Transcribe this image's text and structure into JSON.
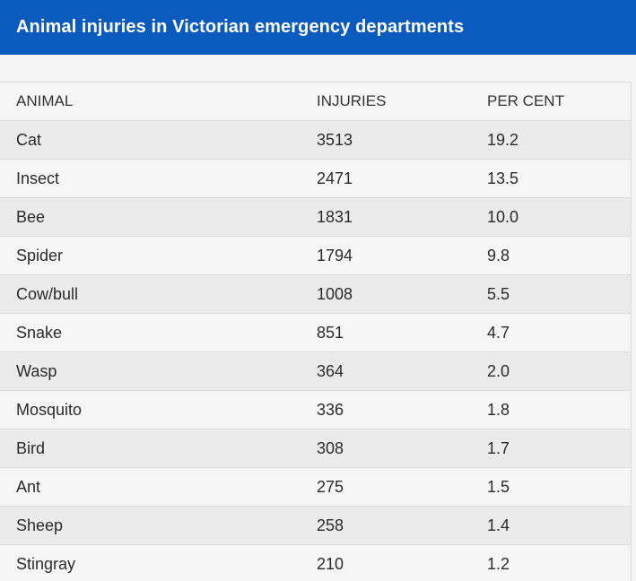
{
  "title": "Animal injuries in Victorian emergency departments",
  "table": {
    "headers": [
      "ANIMAL",
      "INJURIES",
      "PER CENT"
    ],
    "rows": [
      [
        "Cat",
        "3513",
        "19.2"
      ],
      [
        "Insect",
        "2471",
        "13.5"
      ],
      [
        "Bee",
        "1831",
        "10.0"
      ],
      [
        "Spider",
        "1794",
        "9.8"
      ],
      [
        "Cow/bull",
        "1008",
        "5.5"
      ],
      [
        "Snake",
        "851",
        "4.7"
      ],
      [
        "Wasp",
        "364",
        "2.0"
      ],
      [
        "Mosquito",
        "336",
        "1.8"
      ],
      [
        "Bird",
        "308",
        "1.7"
      ],
      [
        "Ant",
        "275",
        "1.5"
      ],
      [
        "Sheep",
        "258",
        "1.4"
      ],
      [
        "Stingray",
        "210",
        "1.2"
      ]
    ]
  },
  "colors": {
    "header_bar": "#0b5bbf",
    "row_alt": "#ebebeb",
    "row_plain": "#f6f6f6"
  }
}
